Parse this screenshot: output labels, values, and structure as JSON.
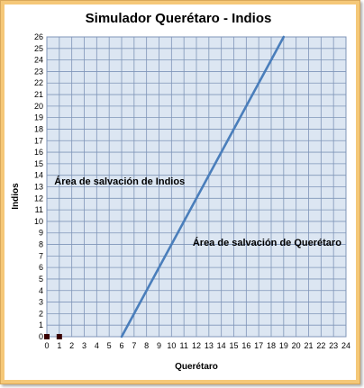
{
  "chart_data": {
    "type": "line",
    "title": "Simulador Querétaro - Indios",
    "xlabel": "Querétaro",
    "ylabel": "Indios",
    "xlim": [
      0,
      24
    ],
    "ylim": [
      0,
      26
    ],
    "grid": true,
    "x_ticks": [
      0,
      1,
      2,
      3,
      4,
      5,
      6,
      7,
      8,
      9,
      10,
      11,
      12,
      13,
      14,
      15,
      16,
      17,
      18,
      19,
      20,
      21,
      22,
      23,
      24
    ],
    "y_ticks": [
      0,
      1,
      2,
      3,
      4,
      5,
      6,
      7,
      8,
      9,
      10,
      11,
      12,
      13,
      14,
      15,
      16,
      17,
      18,
      19,
      20,
      21,
      22,
      23,
      24,
      25,
      26
    ],
    "series": [
      {
        "x": [
          6,
          19
        ],
        "y": [
          0,
          26
        ],
        "color": "#4a7ebb"
      }
    ],
    "points": [
      {
        "x": 0,
        "y": 0,
        "color": "#3a0000"
      },
      {
        "x": 1,
        "y": 0,
        "color": "#3a0000"
      }
    ],
    "annotations": [
      {
        "text": "Área de salvación de Indios",
        "x": 0.6,
        "y": 13.2
      },
      {
        "text": "Área de salvación de Querétaro",
        "x": 11.7,
        "y": 7.9
      }
    ],
    "colors": {
      "plot_background": "#dce6f2",
      "gridline": "#7f95b8",
      "frame": "#f5c878"
    }
  }
}
